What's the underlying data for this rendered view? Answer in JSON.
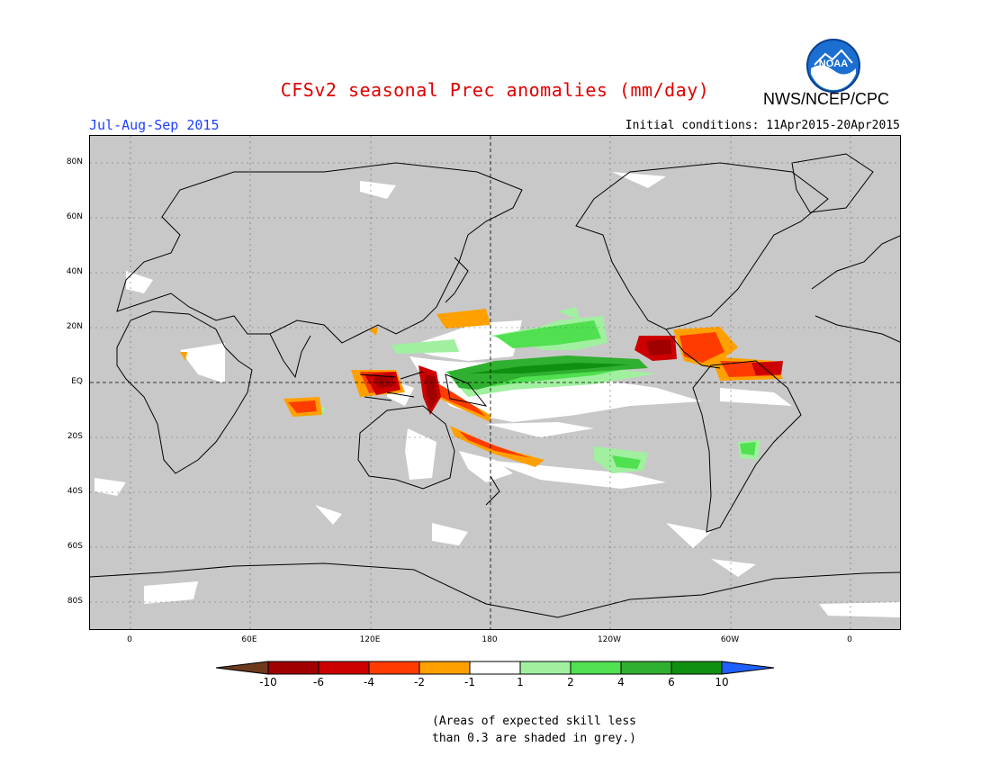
{
  "title": "CFSv2 seasonal Prec anomalies (mm/day)",
  "agency": "NWS/NCEP/CPC",
  "logo_text": "NOAA",
  "season": "Jul-Aug-Sep 2015",
  "initial_conditions": "Initial conditions: 11Apr2015-20Apr2015",
  "lat_labels": [
    "80N",
    "60N",
    "40N",
    "20N",
    "EQ",
    "20S",
    "40S",
    "60S",
    "80S"
  ],
  "lon_labels": [
    "0",
    "60E",
    "120E",
    "180",
    "120W",
    "60W",
    "0"
  ],
  "colorbar": {
    "labels": [
      "-10",
      "-6",
      "-4",
      "-2",
      "-1",
      "1",
      "2",
      "4",
      "6",
      "10"
    ],
    "colors": [
      "#6e3a1e",
      "#a00000",
      "#cc0000",
      "#ff3c00",
      "#ffa000",
      "#ffffff",
      "#a0f0a0",
      "#50e050",
      "#30b030",
      "#109010",
      "#2060ff"
    ]
  },
  "note_line1": "(Areas of expected skill less",
  "note_line2": "than 0.3 are shaded in grey.)",
  "colors": {
    "skill_mask": "#c8c8c8",
    "title": "#e00000",
    "season": "#2040ff"
  }
}
